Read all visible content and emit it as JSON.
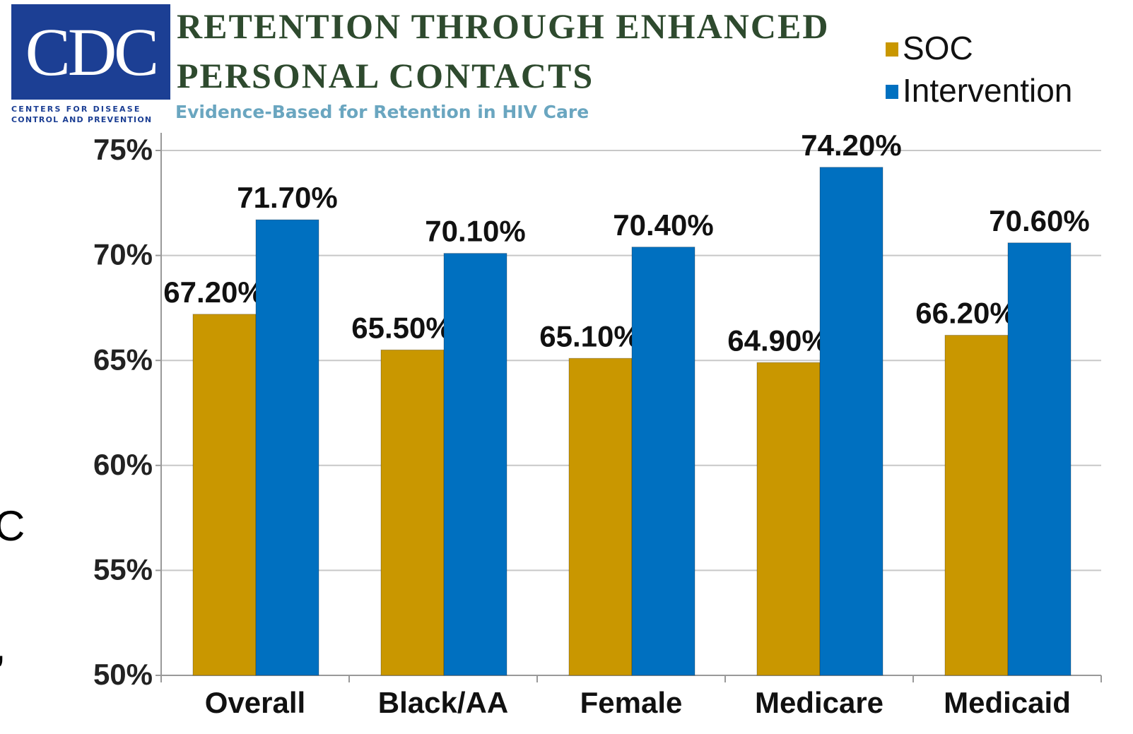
{
  "logo": {
    "mark": "CDC",
    "lines": [
      "CENTERS FOR DISEASE",
      "CONTROL AND PREVENTION"
    ]
  },
  "background_text": [
    "C",
    ","
  ],
  "chart_data": {
    "type": "bar",
    "title": "RETENTION THROUGH ENHANCED PERSONAL CONTACTS",
    "subtitle": "Evidence-Based for Retention in HIV Care",
    "categories": [
      "Overall",
      "Black/AA",
      "Female",
      "Medicare",
      "Medicaid"
    ],
    "series": [
      {
        "name": "SOC",
        "color": "#c99700",
        "values": [
          67.2,
          65.5,
          65.1,
          64.9,
          66.2
        ],
        "value_labels": [
          "67.20%",
          "65.50%",
          "65.10%",
          "64.90%",
          "66.20%"
        ]
      },
      {
        "name": "Intervention",
        "color": "#0070c0",
        "values": [
          71.7,
          70.1,
          70.4,
          74.2,
          70.6
        ],
        "value_labels": [
          "71.70%",
          "70.10%",
          "70.40%",
          "74.20%",
          "70.60%"
        ]
      }
    ],
    "ylim": [
      50,
      75
    ],
    "yticks": [
      {
        "value": 50,
        "label": "50%"
      },
      {
        "value": 55,
        "label": "55%"
      },
      {
        "value": 60,
        "label": "60%"
      },
      {
        "value": 65,
        "label": "65%"
      },
      {
        "value": 70,
        "label": "70%"
      },
      {
        "value": 75,
        "label": "75%"
      }
    ],
    "grid": true,
    "legend": "top-right"
  }
}
